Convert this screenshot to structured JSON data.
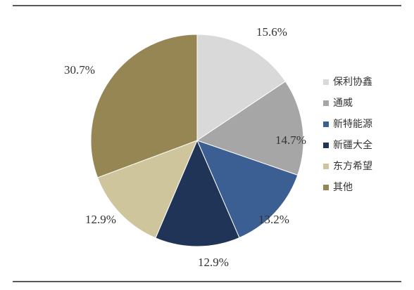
{
  "chart_data": {
    "type": "pie",
    "categories": [
      "保利协鑫",
      "通威",
      "新特能源",
      "新疆大全",
      "东方希望",
      "其他"
    ],
    "values": [
      15.6,
      14.7,
      13.2,
      12.9,
      12.9,
      30.7
    ],
    "value_labels": [
      "15.6%",
      "14.7%",
      "13.2%",
      "12.9%",
      "12.9%",
      "30.7%"
    ],
    "colors": [
      "#d9d9d9",
      "#a6a6a6",
      "#3b5f93",
      "#1f3457",
      "#cfc59d",
      "#958654"
    ]
  }
}
